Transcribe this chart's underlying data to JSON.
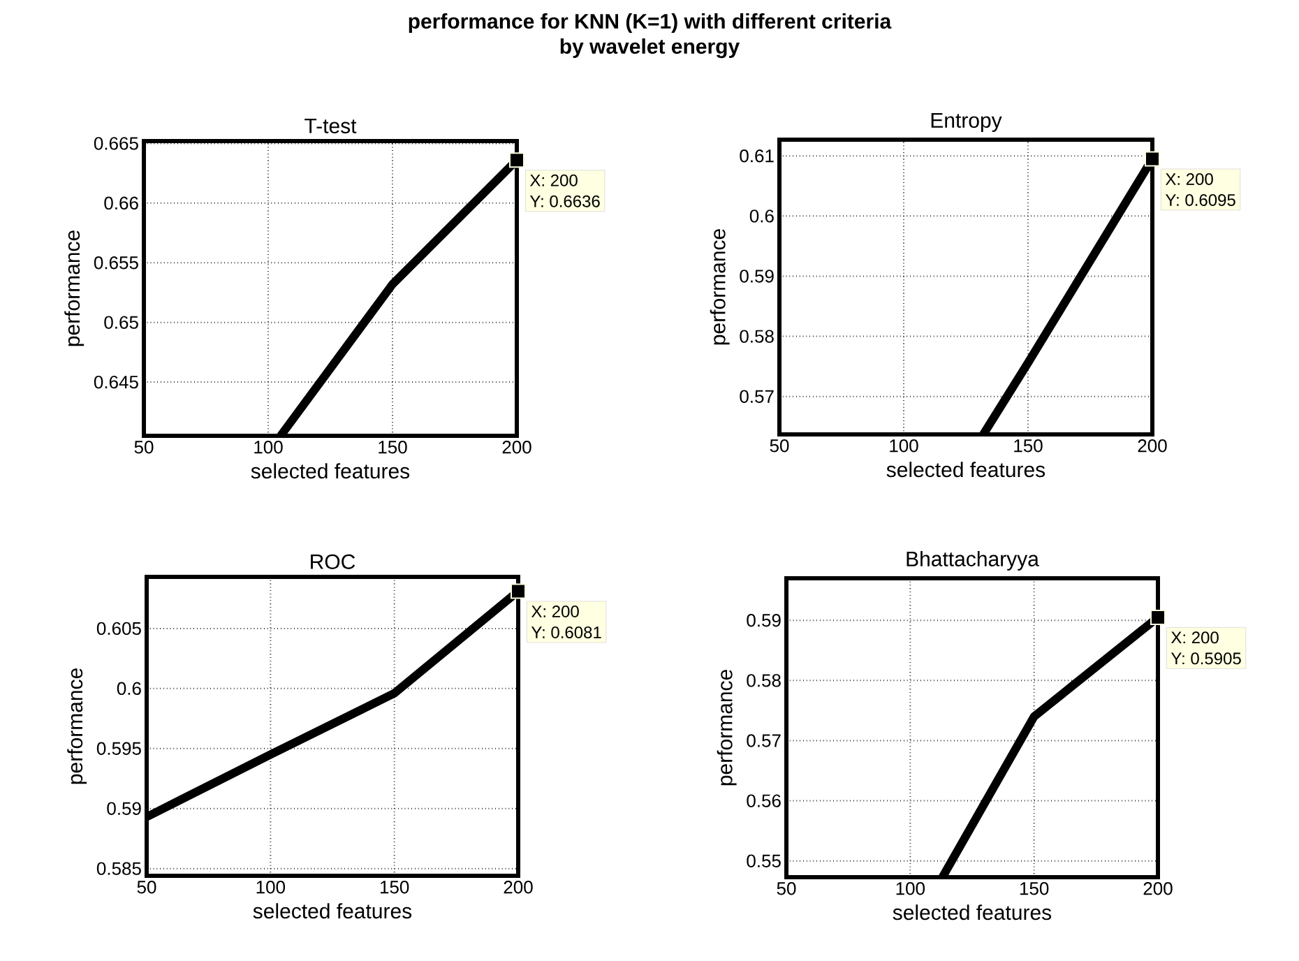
{
  "chart_data": [
    {
      "type": "other",
      "title": "performance for KNN (K=1) with different criteria",
      "subtitle": "by wavelet energy"
    },
    {
      "type": "line",
      "title": "T-test",
      "xlabel": "selected features",
      "ylabel": "performance",
      "xlim": [
        50,
        200
      ],
      "ylim": [
        0.6405,
        0.6652
      ],
      "xticks": [
        50,
        100,
        150,
        200
      ],
      "yticks": [
        0.645,
        0.65,
        0.655,
        0.66,
        0.665
      ],
      "grid": true,
      "line_style": "solid",
      "series": [
        {
          "color": "#000000",
          "x": [
            105,
            150,
            200
          ],
          "values": [
            0.6405,
            0.6532,
            0.6636
          ]
        }
      ],
      "annotations": [
        "X: 200",
        "Y: 0.6636"
      ]
    },
    {
      "type": "line",
      "title": "Entropy",
      "xlabel": "selected features",
      "ylabel": "performance",
      "xlim": [
        50,
        200
      ],
      "ylim": [
        0.5637,
        0.6127
      ],
      "xticks": [
        50,
        100,
        150,
        200
      ],
      "yticks": [
        0.57,
        0.58,
        0.59,
        0.6,
        0.61
      ],
      "grid": true,
      "line_style": "solid",
      "series": [
        {
          "color": "#000000",
          "x": [
            132,
            150,
            200
          ],
          "values": [
            0.5637,
            0.5756,
            0.6095
          ]
        }
      ],
      "annotations": [
        "X: 200",
        "Y: 0.6095"
      ]
    },
    {
      "type": "line",
      "title": "ROC",
      "xlabel": "selected features",
      "ylabel": "performance",
      "xlim": [
        50,
        200
      ],
      "ylim": [
        0.5844,
        0.6093
      ],
      "xticks": [
        50,
        100,
        150,
        200
      ],
      "yticks": [
        0.585,
        0.59,
        0.595,
        0.6,
        0.605
      ],
      "grid": true,
      "line_style": "solid",
      "series": [
        {
          "color": "#000000",
          "x": [
            50,
            100,
            150,
            200
          ],
          "values": [
            0.5893,
            0.5945,
            0.5996,
            0.6081
          ]
        }
      ],
      "annotations": [
        "X: 200",
        "Y: 0.6081"
      ]
    },
    {
      "type": "line",
      "title": "Bhattacharyya",
      "xlabel": "selected features",
      "ylabel": "performance",
      "xlim": [
        50,
        200
      ],
      "ylim": [
        0.5473,
        0.597
      ],
      "xticks": [
        50,
        100,
        150,
        200
      ],
      "yticks": [
        0.55,
        0.56,
        0.57,
        0.58,
        0.59
      ],
      "grid": true,
      "line_style": "solid",
      "series": [
        {
          "color": "#000000",
          "x": [
            113,
            150,
            200
          ],
          "values": [
            0.5473,
            0.574,
            0.5905
          ]
        }
      ],
      "annotations": [
        "X: 200",
        "Y: 0.5905"
      ]
    }
  ]
}
